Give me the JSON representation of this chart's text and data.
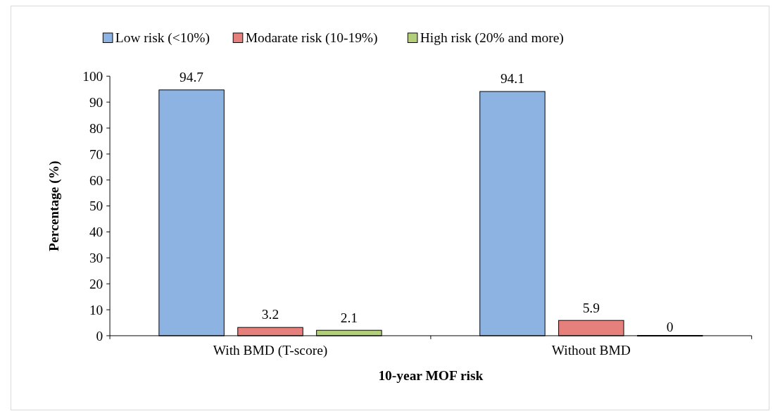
{
  "chart_data": {
    "type": "bar",
    "xlabel": "10-year MOF risk",
    "ylabel": "Percentage (%)",
    "categories": [
      "With BMD (T-score)",
      "Without BMD"
    ],
    "series": [
      {
        "name": "Low risk (<10%)",
        "color": "#8db3e2",
        "values": [
          94.7,
          94.1
        ]
      },
      {
        "name": "Modarate risk (10-19%)",
        "color": "#e6807d",
        "values": [
          3.2,
          5.9
        ]
      },
      {
        "name": "High risk (20% and more)",
        "color": "#b3cf7a",
        "values": [
          2.1,
          0
        ]
      }
    ],
    "ylim": [
      0,
      100
    ],
    "yticks": [
      0,
      10,
      20,
      30,
      40,
      50,
      60,
      70,
      80,
      90,
      100
    ],
    "data_labels": true,
    "legend": "top",
    "grid": false
  }
}
